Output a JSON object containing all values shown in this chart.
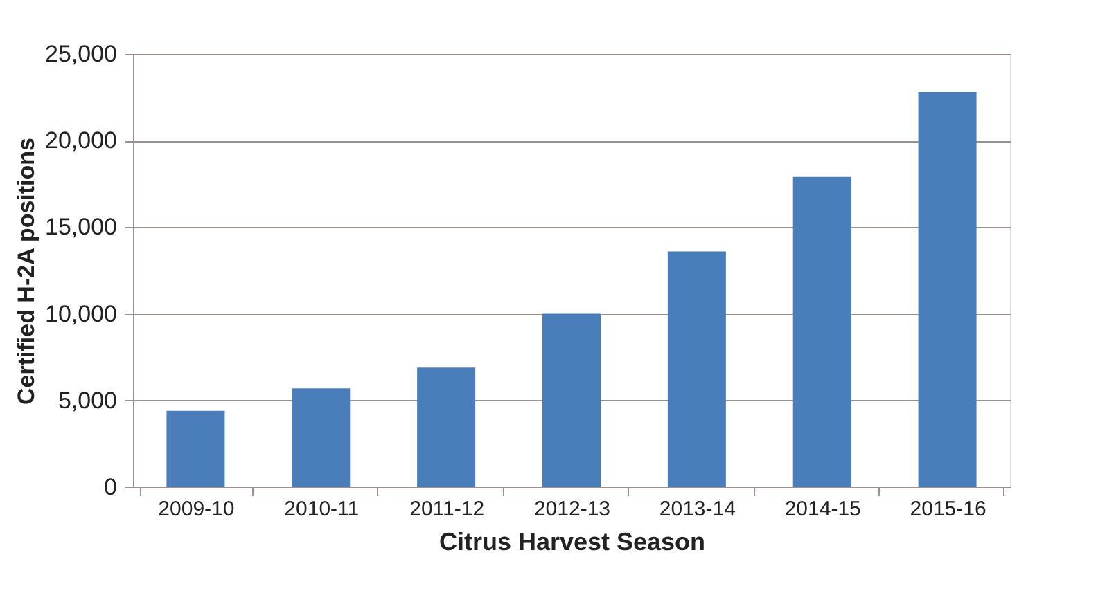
{
  "chart_data": {
    "type": "bar",
    "categories": [
      "2009-10",
      "2010-11",
      "2011-12",
      "2012-13",
      "2013-14",
      "2014-15",
      "2015-16"
    ],
    "values": [
      4400,
      5700,
      6900,
      10000,
      13600,
      17900,
      22800
    ],
    "color": "#4a7ebb",
    "xlabel": "Citrus Harvest Season",
    "ylabel": "Certified H-2A positions",
    "ylim": [
      0,
      25000
    ],
    "yticks": [
      0,
      {
        "value": 5000,
        "label": "5,000"
      },
      {
        "value": 10000,
        "label": "10,000"
      },
      {
        "value": 15000,
        "label": "15,000"
      },
      {
        "value": 20000,
        "label": "20,000"
      },
      {
        "value": 25000,
        "label": "25,000"
      }
    ],
    "grid": "y"
  }
}
